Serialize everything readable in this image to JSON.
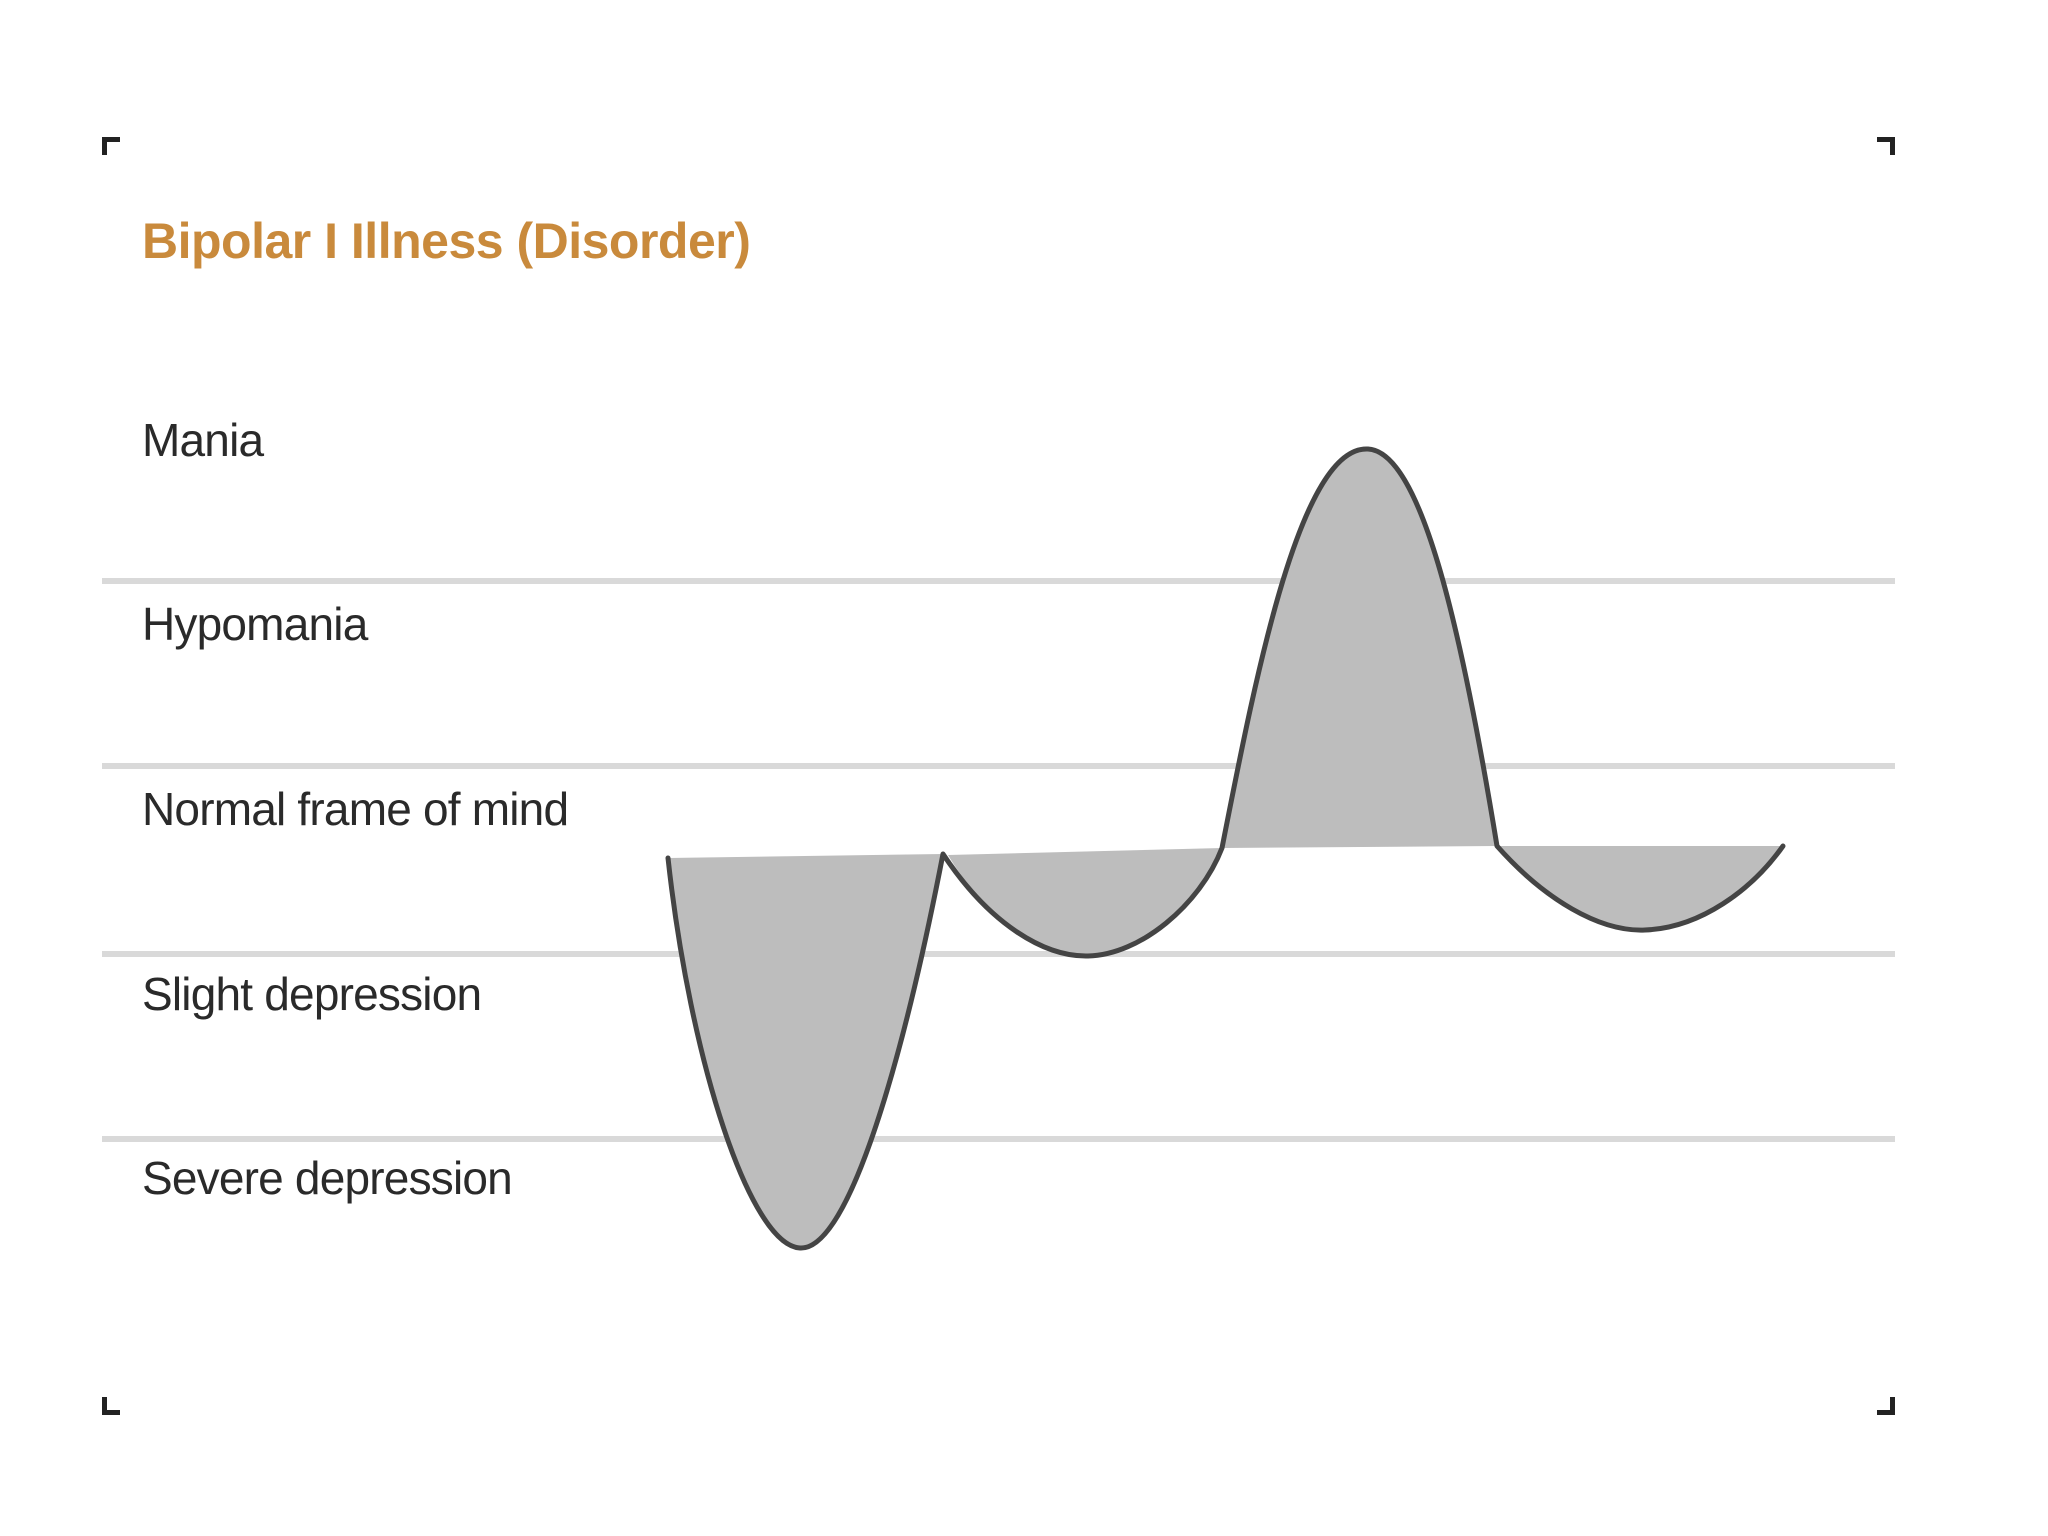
{
  "diagram": {
    "title": "Bipolar I Illness (Disorder)",
    "title_color": "#c98a3c",
    "bands": [
      {
        "id": "mania",
        "label": "Mania"
      },
      {
        "id": "hypomania",
        "label": "Hypomania"
      },
      {
        "id": "normal",
        "label": "Normal frame of mind"
      },
      {
        "id": "slight-depression",
        "label": "Slight depression"
      },
      {
        "id": "severe-depression",
        "label": "Severe depression"
      }
    ],
    "mood_curve": {
      "fill_color": "#bdbdbd",
      "stroke_color": "#444444",
      "divider_color": "#d9d9d9"
    }
  }
}
